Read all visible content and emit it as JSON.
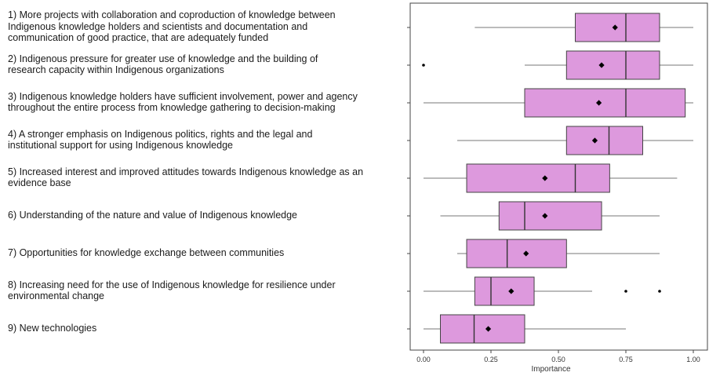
{
  "chart_data": {
    "type": "boxplot",
    "xlabel": "Importance",
    "xlim": [
      -0.05,
      1.05
    ],
    "xticks": [
      0.0,
      0.25,
      0.5,
      0.75,
      1.0
    ],
    "xtick_labels": [
      "0.00",
      "0.25",
      "0.50",
      "0.75",
      "1.00"
    ],
    "grid": false,
    "box_color": "#dd99dd",
    "categories": [
      {
        "label": "1) More projects with collaboration and coproduction of knowledge between\nIndigenous knowledge holders and scientists and documentation and\ncommunication of good practice, that are adequately funded",
        "whisker_low": 0.19,
        "q1": 0.5625,
        "median": 0.75,
        "q3": 0.875,
        "whisker_high": 1.0,
        "mean": 0.71,
        "outliers": []
      },
      {
        "label": "2) Indigenous pressure for greater use of knowledge and the building of\nresearch capacity within Indigenous organizations",
        "whisker_low": 0.375,
        "q1": 0.53,
        "median": 0.75,
        "q3": 0.875,
        "whisker_high": 1.0,
        "mean": 0.66,
        "outliers": [
          0.0
        ]
      },
      {
        "label": "3) Indigenous knowledge holders have sufficient involvement, power and agency\nthroughout the entire process from knowledge gathering to decision-making",
        "whisker_low": 0.0,
        "q1": 0.375,
        "median": 0.75,
        "q3": 0.97,
        "whisker_high": 1.0,
        "mean": 0.65,
        "outliers": []
      },
      {
        "label": "4) A stronger emphasis on Indigenous politics, rights and the legal and\ninstitutional support for using Indigenous knowledge",
        "whisker_low": 0.125,
        "q1": 0.53,
        "median": 0.6875,
        "q3": 0.8125,
        "whisker_high": 1.0,
        "mean": 0.635,
        "outliers": []
      },
      {
        "label": "5) Increased interest and improved attitudes towards Indigenous knowledge as an\nevidence base",
        "whisker_low": 0.0,
        "q1": 0.16,
        "median": 0.5625,
        "q3": 0.69,
        "whisker_high": 0.94,
        "mean": 0.45,
        "outliers": []
      },
      {
        "label": "6) Understanding of the nature and value of Indigenous knowledge",
        "whisker_low": 0.0625,
        "q1": 0.28,
        "median": 0.375,
        "q3": 0.66,
        "whisker_high": 0.875,
        "mean": 0.45,
        "outliers": []
      },
      {
        "label": "7) Opportunities for knowledge exchange between communities",
        "whisker_low": 0.125,
        "q1": 0.16,
        "median": 0.31,
        "q3": 0.53,
        "whisker_high": 0.875,
        "mean": 0.38,
        "outliers": []
      },
      {
        "label": "8) Increasing need for the use of Indigenous knowledge for resilience under\nenvironmental change",
        "whisker_low": 0.0,
        "q1": 0.19,
        "median": 0.25,
        "q3": 0.41,
        "whisker_high": 0.625,
        "mean": 0.325,
        "outliers": [
          0.75,
          0.875
        ]
      },
      {
        "label": "9) New technologies",
        "whisker_low": 0.0,
        "q1": 0.0625,
        "median": 0.1875,
        "q3": 0.375,
        "whisker_high": 0.75,
        "mean": 0.24,
        "outliers": []
      }
    ]
  }
}
